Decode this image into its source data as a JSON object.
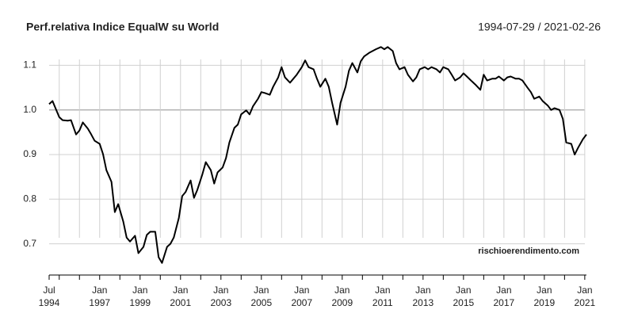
{
  "chart_data": {
    "type": "line",
    "title": "Perf.relativa Indice EqualW su World",
    "subtitle": "1994-07-29 / 2021-02-26",
    "annotation": "rischioerendimento.com",
    "xlim": [
      "1994-07",
      "2021-02"
    ],
    "ylim": [
      0.63,
      1.17
    ],
    "yticks": [
      0.7,
      0.8,
      0.9,
      {
        "value": 1,
        "label": "1.0"
      },
      1.1
    ],
    "reference_line": 1,
    "grid": true,
    "xticks": [
      {
        "value": "1994-07",
        "label": [
          "Jul",
          "1994"
        ]
      },
      {
        "value": "1995-01",
        "label": null
      },
      {
        "value": "1996-01",
        "label": null
      },
      {
        "value": "1997-01",
        "label": [
          "Jan",
          "1997"
        ]
      },
      {
        "value": "1998-01",
        "label": null
      },
      {
        "value": "1999-01",
        "label": [
          "Jan",
          "1999"
        ]
      },
      {
        "value": "2000-01",
        "label": null
      },
      {
        "value": "2001-01",
        "label": [
          "Jan",
          "2001"
        ]
      },
      {
        "value": "2002-01",
        "label": null
      },
      {
        "value": "2003-01",
        "label": [
          "Jan",
          "2003"
        ]
      },
      {
        "value": "2004-01",
        "label": null
      },
      {
        "value": "2005-01",
        "label": [
          "Jan",
          "2005"
        ]
      },
      {
        "value": "2006-01",
        "label": null
      },
      {
        "value": "2007-01",
        "label": [
          "Jan",
          "2007"
        ]
      },
      {
        "value": "2008-01",
        "label": null
      },
      {
        "value": "2009-01",
        "label": [
          "Jan",
          "2009"
        ]
      },
      {
        "value": "2010-01",
        "label": null
      },
      {
        "value": "2011-01",
        "label": [
          "Jan",
          "2011"
        ]
      },
      {
        "value": "2012-01",
        "label": null
      },
      {
        "value": "2013-01",
        "label": [
          "Jan",
          "2013"
        ]
      },
      {
        "value": "2014-01",
        "label": null
      },
      {
        "value": "2015-01",
        "label": [
          "Jan",
          "2015"
        ]
      },
      {
        "value": "2016-01",
        "label": null
      },
      {
        "value": "2017-01",
        "label": [
          "Jan",
          "2017"
        ]
      },
      {
        "value": "2018-01",
        "label": null
      },
      {
        "value": "2019-01",
        "label": [
          "Jan",
          "2019"
        ]
      },
      {
        "value": "2020-01",
        "label": null
      },
      {
        "value": "2021-01",
        "label": [
          "Jan",
          "2021"
        ]
      }
    ],
    "x": [
      "1994-07",
      "1994-09",
      "1994-11",
      "1995-01",
      "1995-03",
      "1995-06",
      "1995-08",
      "1995-11",
      "1996-01",
      "1996-03",
      "1996-06",
      "1996-08",
      "1996-10",
      "1997-01",
      "1997-03",
      "1997-05",
      "1997-08",
      "1997-10",
      "1997-12",
      "1998-03",
      "1998-05",
      "1998-07",
      "1998-10",
      "1998-12",
      "1999-03",
      "1999-05",
      "1999-07",
      "1999-10",
      "1999-12",
      "2000-02",
      "2000-05",
      "2000-07",
      "2000-09",
      "2000-12",
      "2001-02",
      "2001-04",
      "2001-07",
      "2001-09",
      "2001-11",
      "2002-02",
      "2002-04",
      "2002-07",
      "2002-09",
      "2002-11",
      "2003-02",
      "2003-04",
      "2003-06",
      "2003-09",
      "2003-11",
      "2004-01",
      "2004-04",
      "2004-06",
      "2004-08",
      "2004-11",
      "2005-01",
      "2005-03",
      "2005-06",
      "2005-08",
      "2005-11",
      "2006-01",
      "2006-03",
      "2006-06",
      "2006-08",
      "2006-10",
      "2007-01",
      "2007-03",
      "2007-05",
      "2007-08",
      "2007-10",
      "2007-12",
      "2008-03",
      "2008-05",
      "2008-07",
      "2008-10",
      "2008-12",
      "2009-03",
      "2009-05",
      "2009-07",
      "2009-10",
      "2009-12",
      "2010-02",
      "2010-05",
      "2010-07",
      "2010-09",
      "2010-12",
      "2011-02",
      "2011-04",
      "2011-07",
      "2011-09",
      "2011-11",
      "2012-02",
      "2012-04",
      "2012-07",
      "2012-09",
      "2012-11",
      "2013-02",
      "2013-04",
      "2013-06",
      "2013-09",
      "2013-11",
      "2014-01",
      "2014-04",
      "2014-06",
      "2014-08",
      "2014-11",
      "2015-01",
      "2015-03",
      "2015-06",
      "2015-08",
      "2015-11",
      "2016-01",
      "2016-03",
      "2016-06",
      "2016-08",
      "2016-10",
      "2017-01",
      "2017-03",
      "2017-05",
      "2017-08",
      "2017-10",
      "2017-12",
      "2018-03",
      "2018-05",
      "2018-07",
      "2018-10",
      "2018-12",
      "2019-03",
      "2019-05",
      "2019-07",
      "2019-10",
      "2019-12",
      "2020-02",
      "2020-05",
      "2020-07",
      "2020-09",
      "2020-12",
      "2021-02"
    ],
    "series": [
      {
        "name": "Perf.relativa",
        "color": "#000000",
        "values": [
          1.013,
          1.02,
          1.002,
          0.984,
          0.977,
          0.976,
          0.977,
          0.945,
          0.954,
          0.972,
          0.958,
          0.945,
          0.931,
          0.924,
          0.901,
          0.865,
          0.839,
          0.771,
          0.789,
          0.75,
          0.714,
          0.705,
          0.718,
          0.679,
          0.693,
          0.72,
          0.727,
          0.727,
          0.67,
          0.657,
          0.693,
          0.7,
          0.714,
          0.758,
          0.807,
          0.816,
          0.842,
          0.803,
          0.821,
          0.856,
          0.883,
          0.865,
          0.835,
          0.86,
          0.871,
          0.892,
          0.927,
          0.96,
          0.967,
          0.99,
          0.999,
          0.99,
          1.008,
          1.025,
          1.04,
          1.038,
          1.034,
          1.052,
          1.073,
          1.096,
          1.073,
          1.061,
          1.07,
          1.079,
          1.096,
          1.111,
          1.096,
          1.091,
          1.07,
          1.052,
          1.07,
          1.052,
          1.016,
          0.967,
          1.016,
          1.052,
          1.088,
          1.105,
          1.084,
          1.109,
          1.12,
          1.128,
          1.132,
          1.136,
          1.141,
          1.136,
          1.141,
          1.132,
          1.105,
          1.091,
          1.096,
          1.079,
          1.064,
          1.073,
          1.091,
          1.096,
          1.091,
          1.096,
          1.091,
          1.084,
          1.096,
          1.091,
          1.079,
          1.066,
          1.073,
          1.082,
          1.075,
          1.064,
          1.057,
          1.045,
          1.079,
          1.066,
          1.07,
          1.07,
          1.075,
          1.066,
          1.073,
          1.075,
          1.07,
          1.07,
          1.066,
          1.05,
          1.04,
          1.025,
          1.03,
          1.02,
          1.01,
          1.0,
          1.004,
          1.0,
          0.98,
          0.927,
          0.924,
          0.9,
          0.915,
          0.935,
          0.945
        ]
      }
    ]
  }
}
